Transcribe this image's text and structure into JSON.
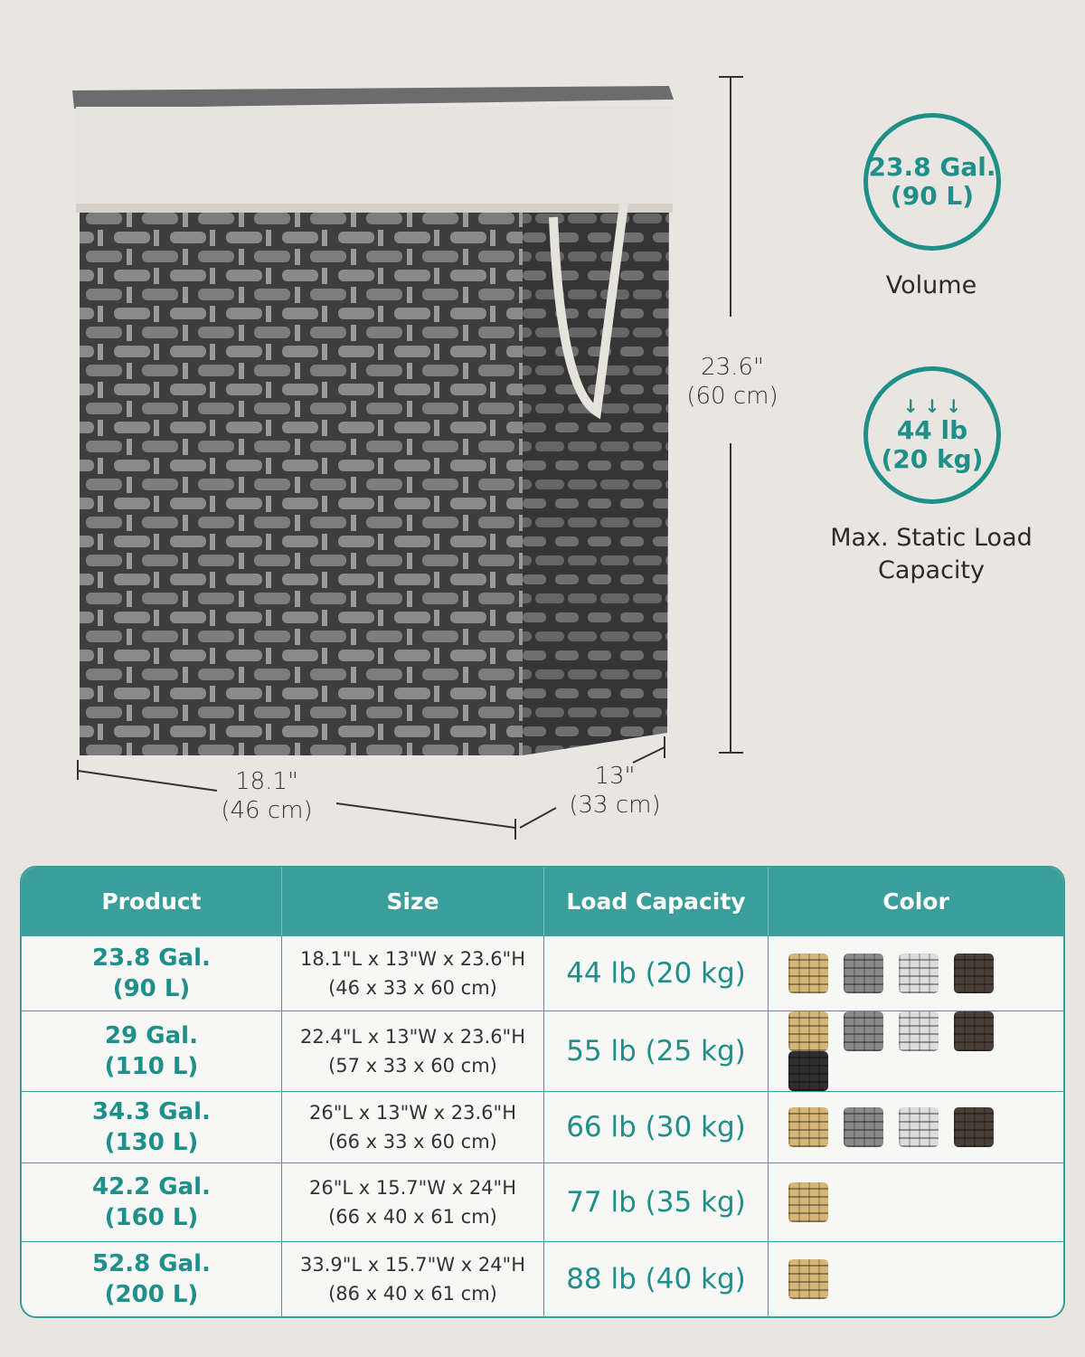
{
  "dimensions": {
    "height_in": "23.6\"",
    "height_cm": "(60 cm)",
    "length_in": "18.1\"",
    "length_cm": "(46 cm)",
    "width_in": "13\"",
    "width_cm": "(33 cm)"
  },
  "badges": [
    {
      "lines": [
        "23.8 Gal.",
        "(90 L)"
      ],
      "caption": [
        "Volume"
      ],
      "icon": "none"
    },
    {
      "icon": "down-arrows-icon",
      "arrows": "↓ ↓ ↓",
      "lines": [
        "44 lb",
        "(20 kg)"
      ],
      "caption": [
        "Max. Static Load",
        "Capacity"
      ]
    }
  ],
  "colors": {
    "accent": "#1f8f89",
    "header": "#3a9e9a",
    "background": "#e9e6e2",
    "swatches": {
      "natural": "#d6b676",
      "gray": "#8a8a8a",
      "white": "#dcdcdc",
      "brown": "#4a3f38",
      "black": "#2e2e2e"
    }
  },
  "table": {
    "headers": [
      "Product",
      "Size",
      "Load Capacity",
      "Color"
    ],
    "rows": [
      {
        "product": [
          "23.8 Gal.",
          "(90 L)"
        ],
        "size": [
          "18.1\"L x 13\"W x 23.6\"H",
          "(46 x 33 x 60 cm)"
        ],
        "load": "44 lb (20 kg)",
        "colors": [
          "natural",
          "gray",
          "white",
          "brown"
        ]
      },
      {
        "product": [
          "29 Gal.",
          "(110 L)"
        ],
        "size": [
          "22.4\"L x 13\"W x 23.6\"H",
          "(57 x 33 x 60 cm)"
        ],
        "load": "55 lb (25 kg)",
        "colors": [
          "natural",
          "gray",
          "white",
          "brown",
          "black"
        ]
      },
      {
        "product": [
          "34.3 Gal.",
          "(130 L)"
        ],
        "size": [
          "26\"L x 13\"W x 23.6\"H",
          "(66 x 33 x 60 cm)"
        ],
        "load": "66 lb (30 kg)",
        "colors": [
          "natural",
          "gray",
          "white",
          "brown"
        ]
      },
      {
        "product": [
          "42.2 Gal.",
          "(160 L)"
        ],
        "size": [
          "26\"L x 15.7\"W x 24\"H",
          "(66 x 40 x 61 cm)"
        ],
        "load": "77 lb (35 kg)",
        "colors": [
          "natural"
        ]
      },
      {
        "product": [
          "52.8 Gal.",
          "(200 L)"
        ],
        "size": [
          "33.9\"L x 15.7\"W x 24\"H",
          "(86 x 40 x 61 cm)"
        ],
        "load": "88 lb (40 kg)",
        "colors": [
          "natural"
        ]
      }
    ]
  }
}
